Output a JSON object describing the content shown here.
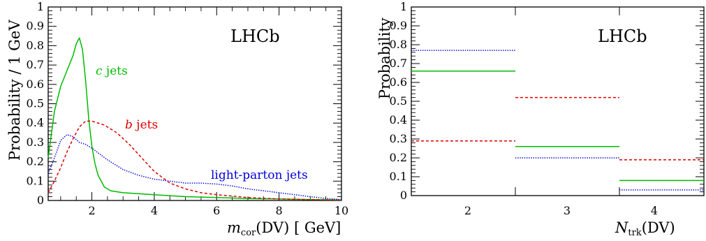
{
  "chart_data": [
    {
      "type": "line",
      "watermark": "LHCb",
      "xlabel": "m_cor(DV) [GeV]",
      "ylabel": "Probability / 1 GeV",
      "xlim": [
        0.6,
        10
      ],
      "ylim": [
        0,
        1
      ],
      "x_ticks": [
        2,
        4,
        6,
        8,
        10
      ],
      "y_ticks": [
        0,
        0.1,
        0.2,
        0.3,
        0.4,
        0.5,
        0.6,
        0.7,
        0.8,
        0.9,
        1
      ],
      "grid": false,
      "legend": "inline labels",
      "series": [
        {
          "name": "c jets",
          "color": "#00bb00",
          "style": "solid",
          "x": [
            0.6,
            0.8,
            1.0,
            1.2,
            1.4,
            1.5,
            1.6,
            1.7,
            1.8,
            1.9,
            2.0,
            2.1,
            2.2,
            2.4,
            2.6,
            3.0,
            3.5,
            4.0,
            5.0,
            6.0,
            7.0,
            8.0,
            9.0,
            10.0
          ],
          "y": [
            0.22,
            0.46,
            0.59,
            0.67,
            0.75,
            0.81,
            0.84,
            0.78,
            0.62,
            0.42,
            0.28,
            0.19,
            0.13,
            0.07,
            0.05,
            0.04,
            0.035,
            0.03,
            0.02,
            0.015,
            0.01,
            0.008,
            0.005,
            0.003
          ]
        },
        {
          "name": "b jets",
          "color": "#dd0000",
          "style": "dashed",
          "x": [
            0.6,
            0.8,
            1.0,
            1.2,
            1.4,
            1.6,
            1.8,
            2.0,
            2.4,
            2.8,
            3.2,
            3.6,
            4.0,
            4.5,
            5.0,
            5.5,
            6.0,
            7.0,
            8.0,
            9.0,
            10.0
          ],
          "y": [
            0.04,
            0.1,
            0.17,
            0.25,
            0.32,
            0.38,
            0.41,
            0.41,
            0.39,
            0.35,
            0.29,
            0.22,
            0.15,
            0.09,
            0.06,
            0.04,
            0.03,
            0.015,
            0.008,
            0.004,
            0.002
          ]
        },
        {
          "name": "light-parton jets",
          "color": "#0000dd",
          "style": "dotted",
          "x": [
            0.6,
            0.8,
            1.0,
            1.2,
            1.4,
            1.6,
            1.8,
            2.0,
            2.5,
            3.0,
            3.5,
            4.0,
            4.5,
            5.0,
            5.5,
            6.0,
            6.5,
            7.0,
            7.5,
            8.0,
            8.5,
            9.0,
            9.5,
            10.0
          ],
          "y": [
            0.14,
            0.22,
            0.31,
            0.34,
            0.33,
            0.3,
            0.29,
            0.27,
            0.21,
            0.16,
            0.13,
            0.11,
            0.1,
            0.09,
            0.09,
            0.085,
            0.075,
            0.06,
            0.05,
            0.04,
            0.03,
            0.02,
            0.01,
            0.005
          ]
        }
      ]
    },
    {
      "type": "bar",
      "bar_style": "horizontal-step-lines",
      "watermark": "LHCb",
      "xlabel": "N_trk(DV)",
      "ylabel": "Probability",
      "categories": [
        "2",
        "3",
        "4"
      ],
      "ylim": [
        0,
        1
      ],
      "y_ticks": [
        0,
        0.1,
        0.2,
        0.3,
        0.4,
        0.5,
        0.6,
        0.7,
        0.8,
        0.9,
        1
      ],
      "grid": false,
      "series": [
        {
          "color": "#00bb00",
          "style": "solid",
          "values": [
            0.66,
            0.26,
            0.08
          ]
        },
        {
          "color": "#dd0000",
          "style": "dashed",
          "values": [
            0.29,
            0.52,
            0.19
          ]
        },
        {
          "color": "#0000dd",
          "style": "dotted",
          "values": [
            0.77,
            0.2,
            0.03
          ]
        }
      ]
    }
  ]
}
